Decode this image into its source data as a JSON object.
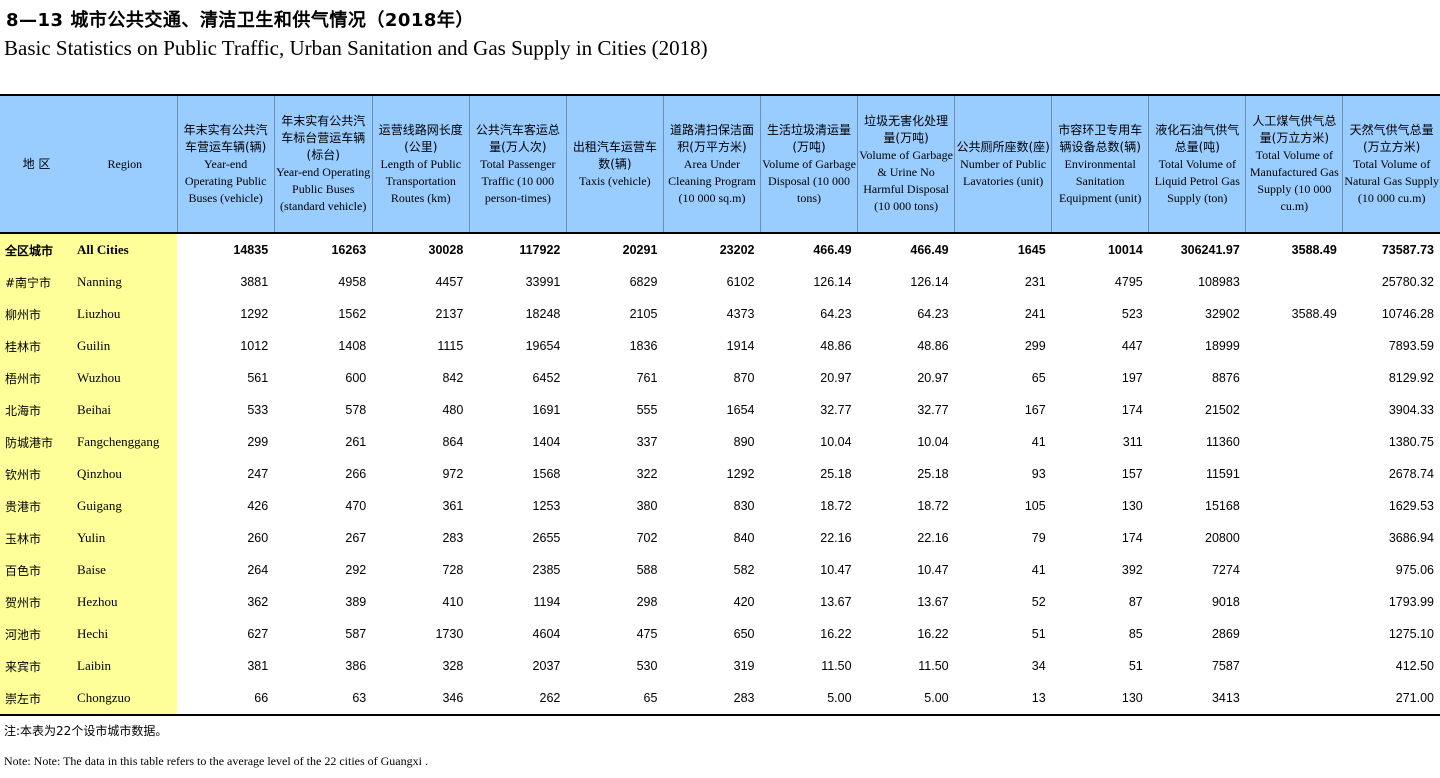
{
  "title_cn": "8—13  城市公共交通、清洁卫生和供气情况（2018年）",
  "title_en": "Basic Statistics on Public Traffic, Urban Sanitation and Gas Supply in Cities (2018)",
  "headers": {
    "region_cn": "地 区",
    "region_en": "Region",
    "columns": [
      {
        "cn": "年末实有公共汽车营运车辆(辆)",
        "en": "Year-end Operating Public Buses (vehicle)"
      },
      {
        "cn": "年末实有公共汽车标台营运车辆(标台)",
        "en": "Year-end Operating Public Buses (standard vehicle)"
      },
      {
        "cn": "运营线路网长度(公里)",
        "en": "Length of Public Transportation Routes (km)"
      },
      {
        "cn": "公共汽车客运总量(万人次)",
        "en": "Total Passenger Traffic (10 000 person-times)"
      },
      {
        "cn": "出租汽车运营车数(辆)",
        "en": "Taxis (vehicle)"
      },
      {
        "cn": "道路清扫保洁面积(万平方米)",
        "en": "Area Under Cleaning Program (10 000 sq.m)"
      },
      {
        "cn": "生活垃圾清运量(万吨)",
        "en": "Volume of Garbage Disposal (10 000 tons)"
      },
      {
        "cn": "垃圾无害化处理量(万吨)",
        "en": "Volume of Garbage & Urine No Harmful Disposal (10 000 tons)"
      },
      {
        "cn": "公共厕所座数(座)",
        "en": "Number of Public Lavatories (unit)"
      },
      {
        "cn": "市容环卫专用车辆设备总数(辆)",
        "en": "Environmental Sanitation Equipment (unit)"
      },
      {
        "cn": "液化石油气供气总量(吨)",
        "en": "Total Volume of Liquid Petrol Gas Supply (ton)"
      },
      {
        "cn": "人工煤气供气总量(万立方米)",
        "en": "Total Volume of Manufactured Gas Supply (10 000 cu.m)"
      },
      {
        "cn": "天然气供气总量(万立方米)",
        "en": "Total Volume of Natural Gas Supply (10 000 cu.m)"
      }
    ]
  },
  "rows": [
    {
      "cn": "全区城市",
      "en": "All Cities",
      "v": [
        "14835",
        "16263",
        "30028",
        "117922",
        "20291",
        "23202",
        "466.49",
        "466.49",
        "1645",
        "10014",
        "306241.97",
        "3588.49",
        "73587.73"
      ]
    },
    {
      "cn": "#南宁市",
      "en": "Nanning",
      "v": [
        "3881",
        "4958",
        "4457",
        "33991",
        "6829",
        "6102",
        "126.14",
        "126.14",
        "231",
        "4795",
        "108983",
        "",
        "25780.32"
      ]
    },
    {
      "cn": "柳州市",
      "en": "Liuzhou",
      "v": [
        "1292",
        "1562",
        "2137",
        "18248",
        "2105",
        "4373",
        "64.23",
        "64.23",
        "241",
        "523",
        "32902",
        "3588.49",
        "10746.28"
      ]
    },
    {
      "cn": "桂林市",
      "en": "Guilin",
      "v": [
        "1012",
        "1408",
        "1115",
        "19654",
        "1836",
        "1914",
        "48.86",
        "48.86",
        "299",
        "447",
        "18999",
        "",
        "7893.59"
      ]
    },
    {
      "cn": "梧州市",
      "en": "Wuzhou",
      "v": [
        "561",
        "600",
        "842",
        "6452",
        "761",
        "870",
        "20.97",
        "20.97",
        "65",
        "197",
        "8876",
        "",
        "8129.92"
      ]
    },
    {
      "cn": "北海市",
      "en": "Beihai",
      "v": [
        "533",
        "578",
        "480",
        "1691",
        "555",
        "1654",
        "32.77",
        "32.77",
        "167",
        "174",
        "21502",
        "",
        "3904.33"
      ]
    },
    {
      "cn": "防城港市",
      "en": "Fangchenggang",
      "v": [
        "299",
        "261",
        "864",
        "1404",
        "337",
        "890",
        "10.04",
        "10.04",
        "41",
        "311",
        "11360",
        "",
        "1380.75"
      ]
    },
    {
      "cn": "钦州市",
      "en": "Qinzhou",
      "v": [
        "247",
        "266",
        "972",
        "1568",
        "322",
        "1292",
        "25.18",
        "25.18",
        "93",
        "157",
        "11591",
        "",
        "2678.74"
      ]
    },
    {
      "cn": "贵港市",
      "en": "Guigang",
      "v": [
        "426",
        "470",
        "361",
        "1253",
        "380",
        "830",
        "18.72",
        "18.72",
        "105",
        "130",
        "15168",
        "",
        "1629.53"
      ]
    },
    {
      "cn": "玉林市",
      "en": "Yulin",
      "v": [
        "260",
        "267",
        "283",
        "2655",
        "702",
        "840",
        "22.16",
        "22.16",
        "79",
        "174",
        "20800",
        "",
        "3686.94"
      ]
    },
    {
      "cn": "百色市",
      "en": "Baise",
      "v": [
        "264",
        "292",
        "728",
        "2385",
        "588",
        "582",
        "10.47",
        "10.47",
        "41",
        "392",
        "7274",
        "",
        "975.06"
      ]
    },
    {
      "cn": "贺州市",
      "en": "Hezhou",
      "v": [
        "362",
        "389",
        "410",
        "1194",
        "298",
        "420",
        "13.67",
        "13.67",
        "52",
        "87",
        "9018",
        "",
        "1793.99"
      ]
    },
    {
      "cn": "河池市",
      "en": "Hechi",
      "v": [
        "627",
        "587",
        "1730",
        "4604",
        "475",
        "650",
        "16.22",
        "16.22",
        "51",
        "85",
        "2869",
        "",
        "1275.10"
      ]
    },
    {
      "cn": "来宾市",
      "en": "Laibin",
      "v": [
        "381",
        "386",
        "328",
        "2037",
        "530",
        "319",
        "11.50",
        "11.50",
        "34",
        "51",
        "7587",
        "",
        "412.50"
      ]
    },
    {
      "cn": "崇左市",
      "en": "Chongzuo",
      "v": [
        "66",
        "63",
        "346",
        "262",
        "65",
        "283",
        "5.00",
        "5.00",
        "13",
        "130",
        "3413",
        "",
        "271.00"
      ]
    }
  ],
  "note_cn": "注:本表为22个设市城市数据。",
  "note_en": "Note:  Note: The data in this table refers to the average level of the 22 cities of Guangxi ."
}
